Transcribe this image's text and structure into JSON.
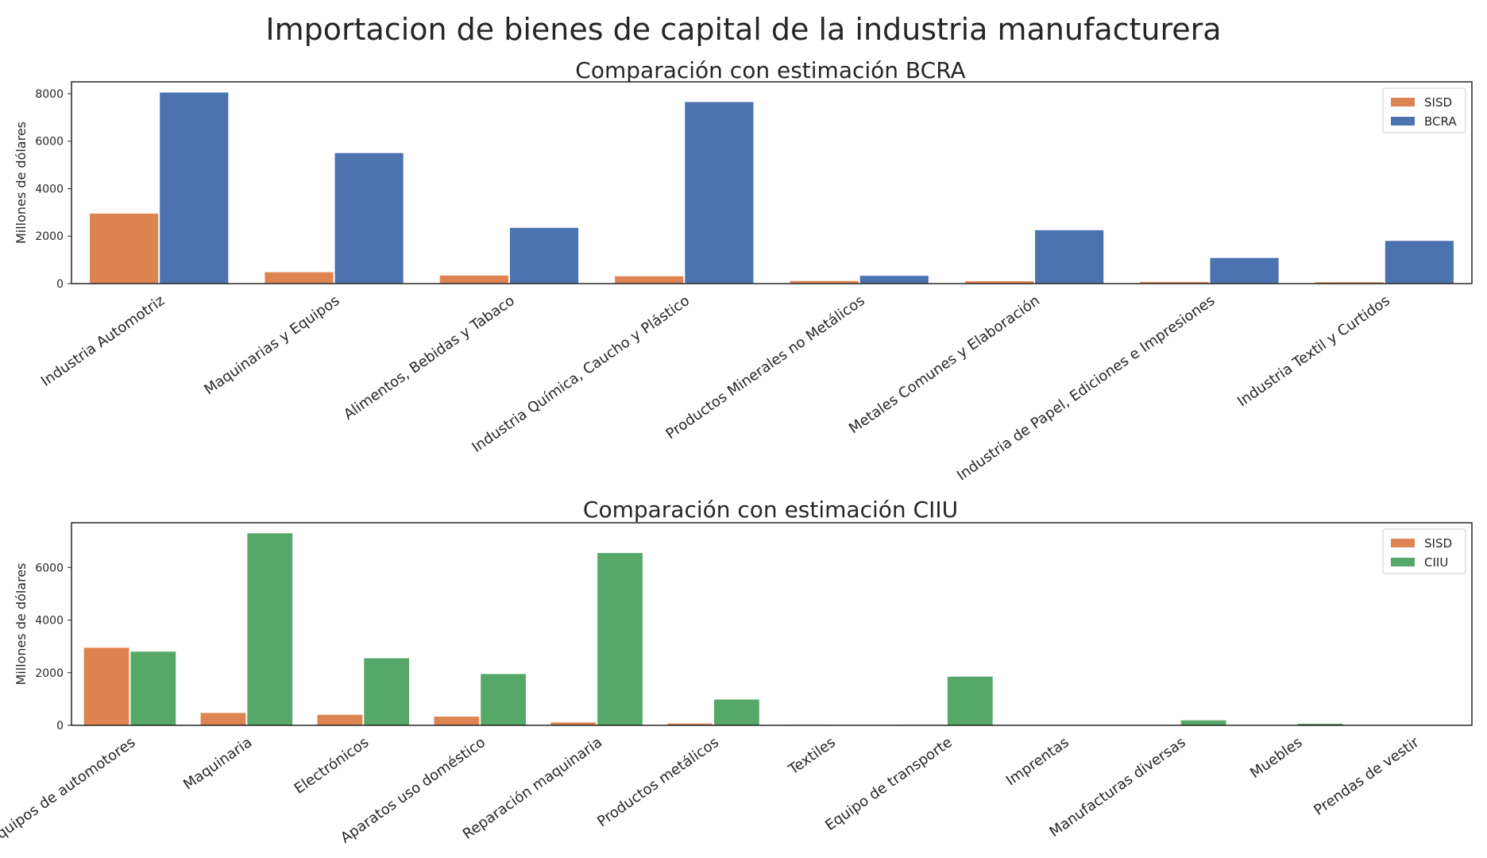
{
  "figure": {
    "title": "Importacion de bienes de capital de la industria manufacturera"
  },
  "chart_data": [
    {
      "type": "bar",
      "title": "Comparación con estimación BCRA",
      "xlabel": "",
      "ylabel": "Millones de dólares",
      "ylim": [
        0,
        8500
      ],
      "yticks": [
        0,
        2000,
        4000,
        6000,
        8000
      ],
      "grid": false,
      "legend_position": "top-right",
      "categories": [
        "Industria Automotriz",
        "Maquinarias y Equipos",
        "Alimentos, Bebidas y Tabaco",
        "Industria Química, Caucho y Plástico",
        "Productos Minerales no Metálicos",
        "Metales Comunes y Elaboración",
        "Industria de Papel, Ediciones e Impresiones",
        "Industria Textil y Curtidos"
      ],
      "series": [
        {
          "name": "SISD",
          "color": "#DD8452",
          "values": [
            2950,
            480,
            340,
            310,
            110,
            100,
            70,
            60
          ]
        },
        {
          "name": "BCRA",
          "color": "#4C72B0",
          "values": [
            8050,
            5500,
            2350,
            7650,
            330,
            2250,
            1080,
            1800
          ]
        }
      ]
    },
    {
      "type": "bar",
      "title": "Comparación con estimación CIIU",
      "xlabel": "",
      "ylabel": "Millones de dólares",
      "ylim": [
        0,
        7700
      ],
      "yticks": [
        0,
        2000,
        4000,
        6000
      ],
      "grid": false,
      "legend_position": "top-right",
      "categories": [
        "Equipos de automotores",
        "Maquinaria",
        "Electrónicos",
        "Aparatos uso doméstico",
        "Reparación maquinaria",
        "Productos metálicos",
        "Textiles",
        "Equipo de transporte",
        "Imprentas",
        "Manufacturas diversas",
        "Muebles",
        "Prendas de vestir"
      ],
      "series": [
        {
          "name": "SISD",
          "color": "#DD8452",
          "values": [
            2950,
            470,
            400,
            330,
            110,
            70,
            20,
            20,
            10,
            5,
            5,
            5
          ]
        },
        {
          "name": "CIIU",
          "color": "#55A868",
          "values": [
            2800,
            7300,
            2550,
            1950,
            6550,
            980,
            10,
            1850,
            10,
            190,
            60,
            10
          ]
        }
      ]
    }
  ]
}
